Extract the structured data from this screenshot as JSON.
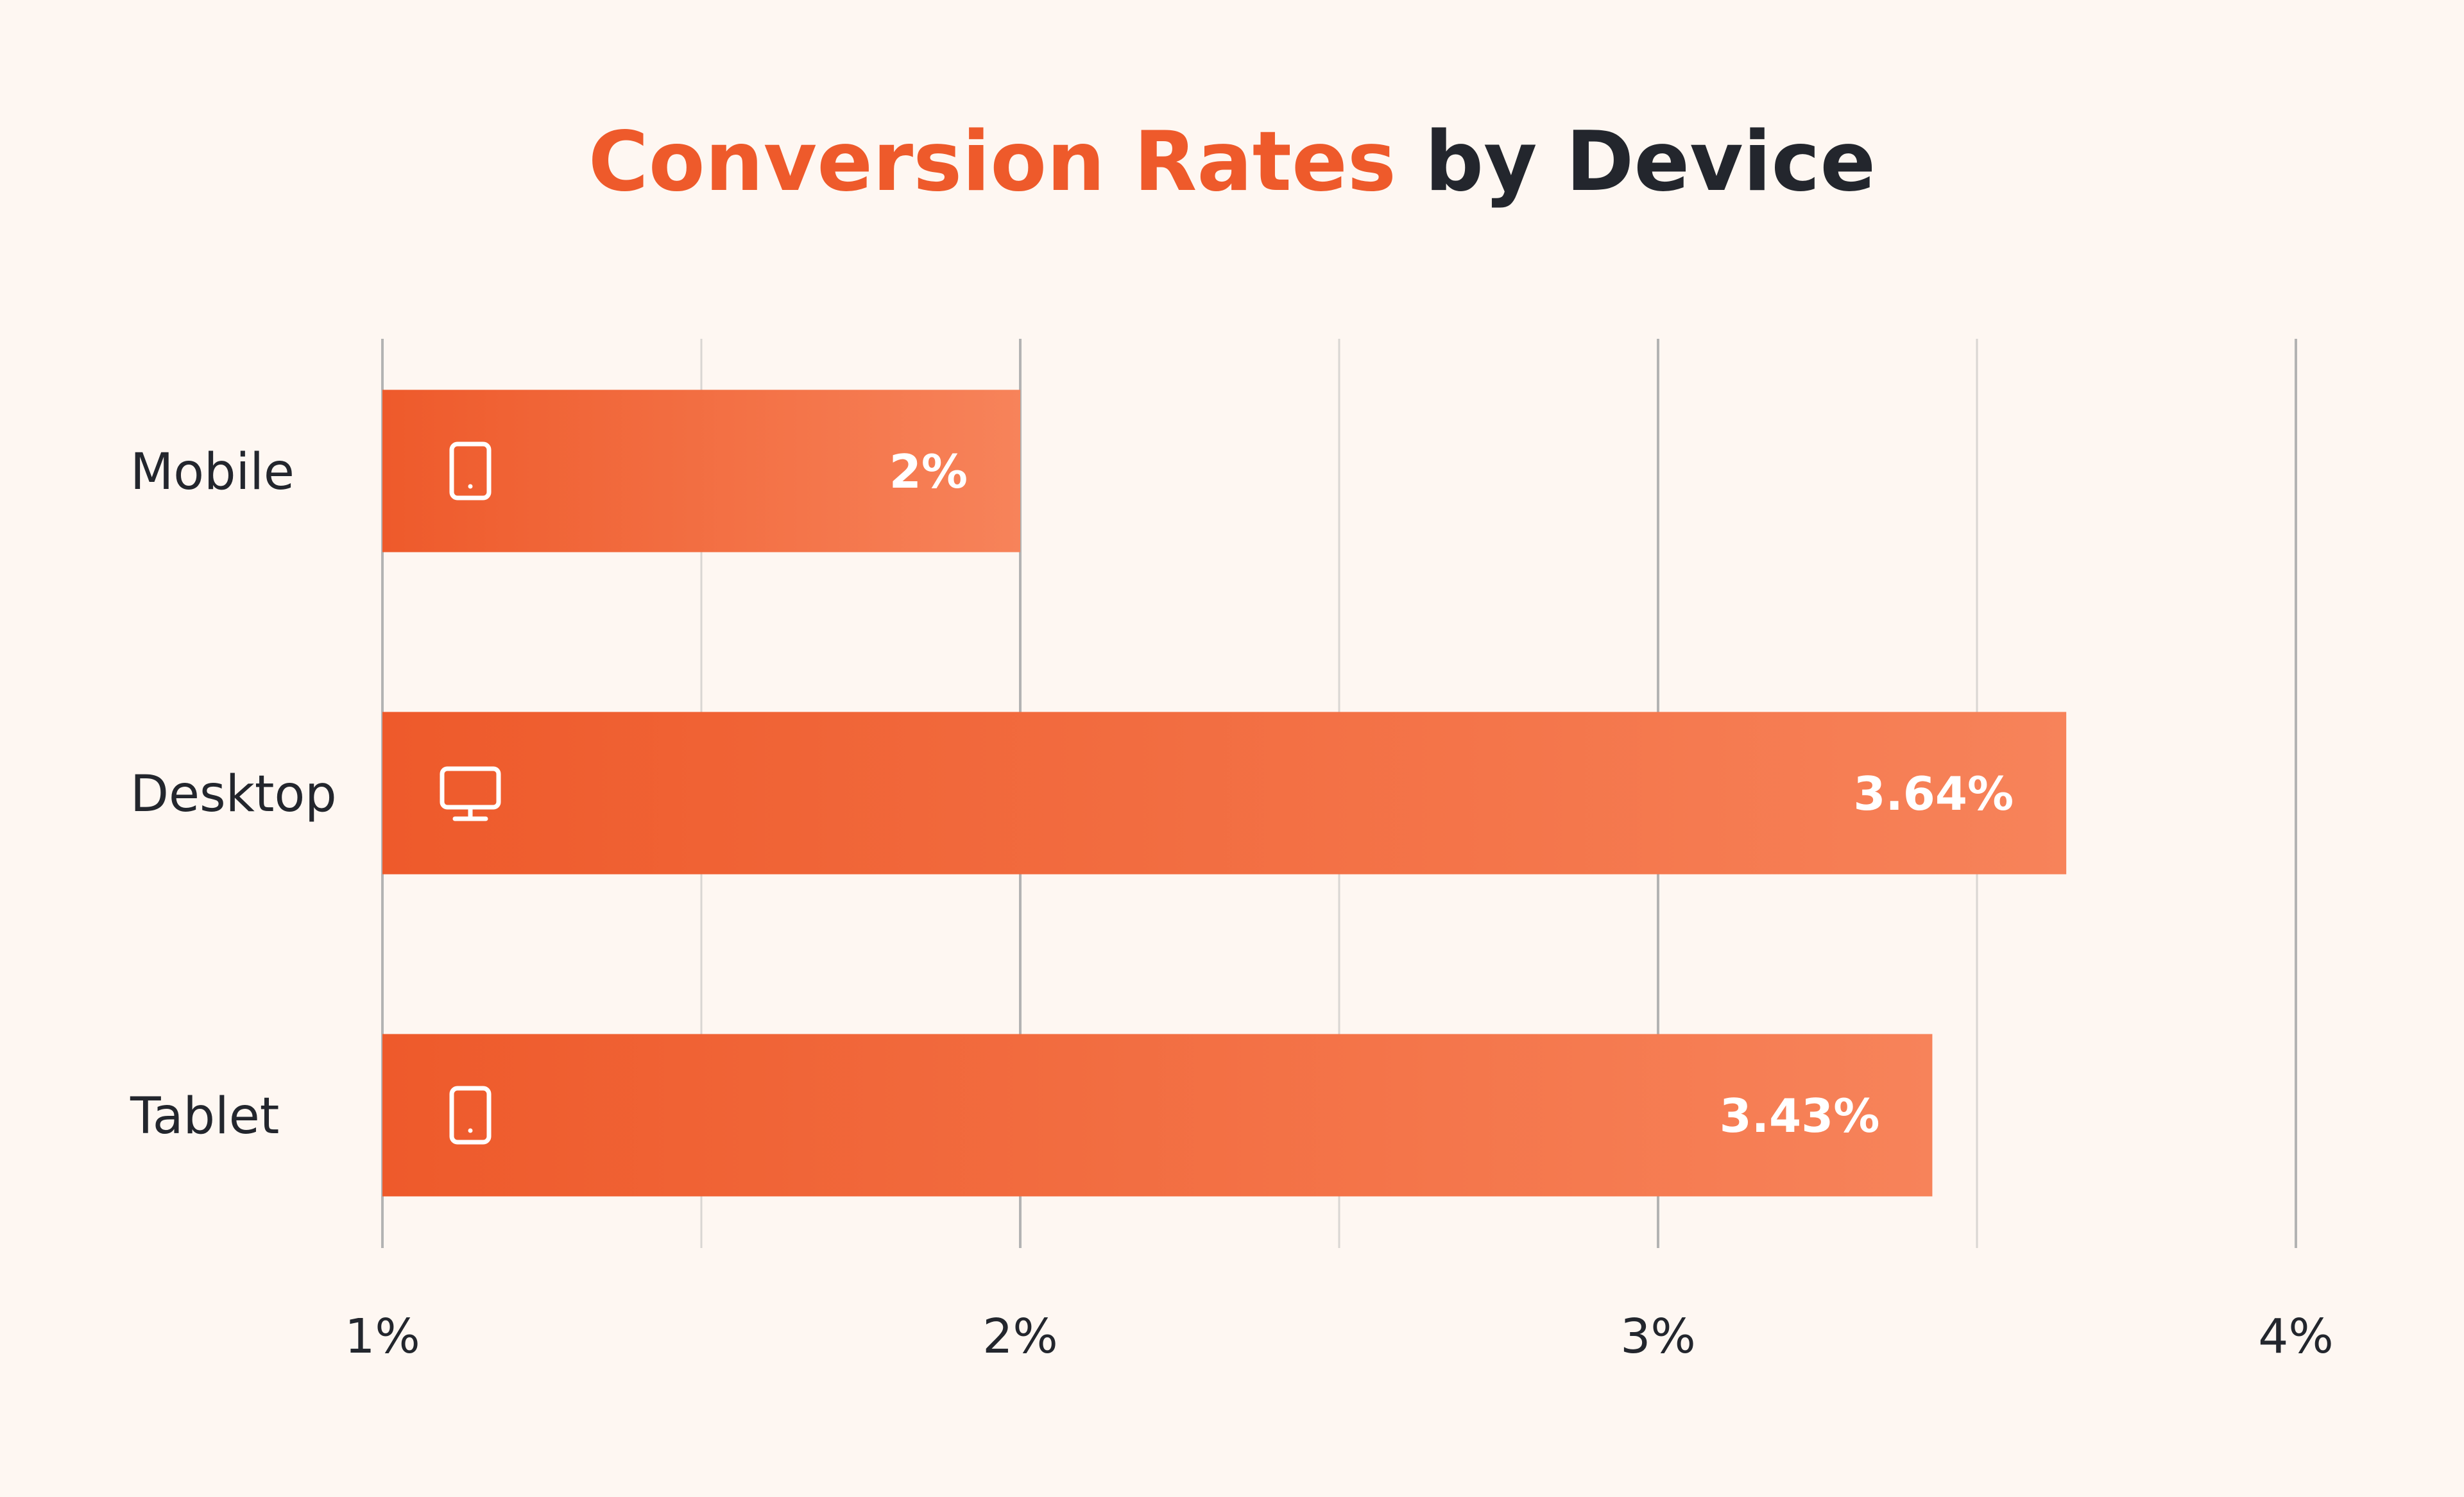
{
  "title": {
    "highlight": "Conversion Rates",
    "rest": " by Device"
  },
  "colors": {
    "accent": "#EE5A2B",
    "bar_start": "#EE5A2B",
    "bar_end": "#F7835A",
    "text": "#23262D",
    "background": "#FEF7F2",
    "grid": "#BDBDBD"
  },
  "chart_data": {
    "type": "bar",
    "orientation": "horizontal",
    "title": "Conversion Rates by Device",
    "categories": [
      "Mobile",
      "Desktop",
      "Tablet"
    ],
    "values": [
      2,
      3.64,
      3.43
    ],
    "value_labels": [
      "2%",
      "3.64%",
      "3.43%"
    ],
    "icons": [
      "tablet-icon",
      "monitor-icon",
      "tablet-icon"
    ],
    "xlim": [
      1,
      4
    ],
    "x_ticks": [
      1,
      2,
      3,
      4
    ],
    "x_tick_labels": [
      "1%",
      "2%",
      "3%",
      "4%"
    ],
    "minor_grid_step": 0.5,
    "grid": true,
    "legend": "none"
  }
}
